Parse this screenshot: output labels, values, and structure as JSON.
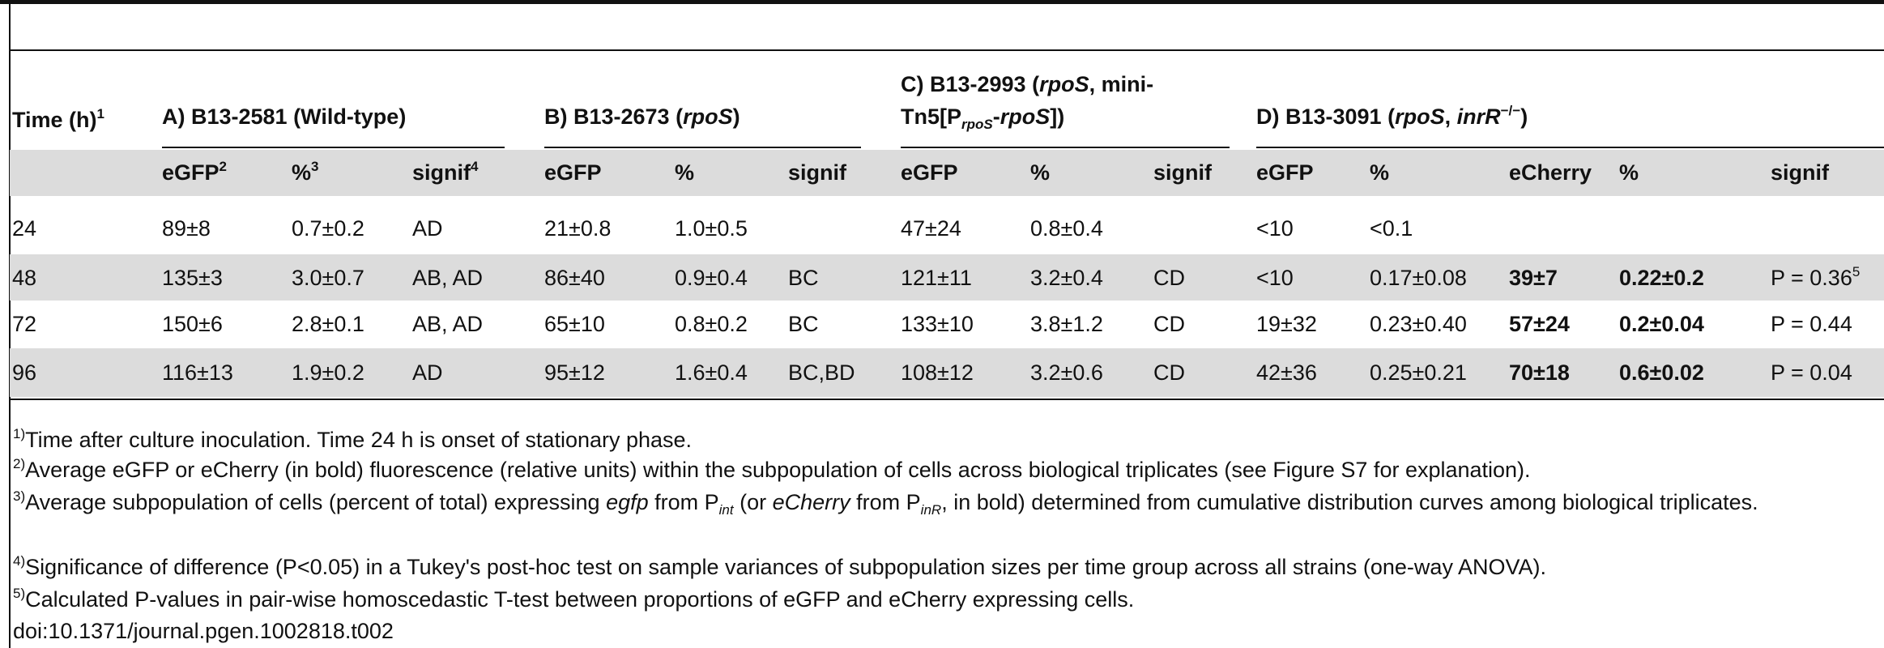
{
  "table": {
    "header": {
      "time": [
        "Time (h)",
        "1"
      ],
      "groups": [
        [
          "A) B13-2581 (Wild-type)"
        ],
        [
          "B) B13-2673 (",
          "rpoS",
          ")"
        ],
        [
          "C) B13-2993 (",
          "rpoS",
          ", mini-",
          "Tn5[P",
          "rpoS",
          "-",
          "rpoS",
          "])"
        ],
        [
          "D) B13-3091 (",
          "rpoS",
          ", ",
          "inrR",
          "−/−",
          ")"
        ]
      ],
      "columns": [
        {
          "text": "eGFP",
          "note": "2"
        },
        {
          "text": "%",
          "note": "3"
        },
        {
          "text": "signif",
          "note": "4"
        },
        "eGFP",
        "%",
        "signif",
        "eGFP",
        "%",
        "signif",
        "eGFP",
        "%",
        "eCherry",
        "%",
        "signif"
      ]
    },
    "rows": [
      {
        "time": "24",
        "cells": [
          "89±8",
          "0.7±0.2",
          "AD",
          "21±0.8",
          "1.0±0.5",
          null,
          "47±24",
          "0.8±0.4",
          null,
          "<10",
          "<0.1",
          null,
          null,
          null
        ]
      },
      {
        "time": "48",
        "cells": [
          "135±3",
          "3.0±0.7",
          "AB, AD",
          "86±40",
          "0.9±0.4",
          "BC",
          "121±11",
          "3.2±0.4",
          "CD",
          "<10",
          "0.17±0.08",
          "39±7",
          "0.22±0.2",
          {
            "text": "P = 0.36",
            "note": "5"
          }
        ]
      },
      {
        "time": "72",
        "cells": [
          "150±6",
          "2.8±0.1",
          "AB, AD",
          "65±10",
          "0.8±0.2",
          "BC",
          "133±10",
          "3.8±1.2",
          "CD",
          "19±32",
          "0.23±0.40",
          "57±24",
          "0.2±0.04",
          "P = 0.44"
        ]
      },
      {
        "time": "96",
        "cells": [
          "116±13",
          "1.9±0.2",
          "AD",
          "95±12",
          "1.6±0.4",
          "BC,BD",
          "108±12",
          "3.2±0.6",
          "CD",
          "42±36",
          "0.25±0.21",
          "70±18",
          "0.6±0.02",
          "P = 0.04"
        ]
      }
    ]
  },
  "footnotes": [
    [
      "1)",
      "Time after culture inoculation. Time 24 h is onset of stationary phase."
    ],
    [
      "2)",
      "Average eGFP or eCherry (in bold) fluorescence (relative units) within the subpopulation of cells across biological triplicates (see Figure S7 for explanation)."
    ],
    [
      "3)",
      "Average subpopulation of cells (percent of total) expressing ",
      "egfp",
      " from P",
      "int",
      " (or ",
      "eCherry",
      " from P",
      "inR",
      ", in bold) determined from cumulative distribution curves among biological triplicates."
    ],
    [
      "4)",
      "Significance of difference (P<0.05) in a Tukey's post-hoc test on sample variances of subpopulation sizes per time group across all strains (one-way ANOVA)."
    ],
    [
      "5)",
      "Calculated P-values in pair-wise homoscedastic T-test between proportions of eGFP and eCherry expressing cells."
    ]
  ],
  "doi": "doi:10.1371/journal.pgen.1002818.t002"
}
